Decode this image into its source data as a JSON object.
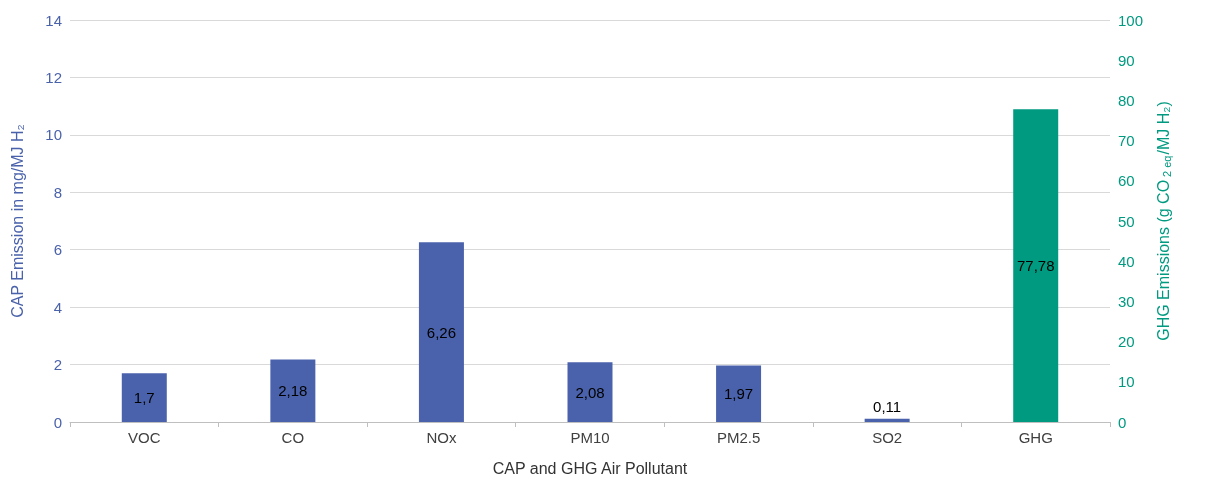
{
  "chart_data": {
    "type": "bar",
    "xlabel": "CAP and GHG Air Pollutant",
    "ylabel": "CAP Emission in mg/MJ H₂",
    "y2label": "GHG Emissions (g CO$_{2 eq}$/MJ H₂)",
    "categories": [
      "VOC",
      "CO",
      "NOx",
      "PM10",
      "PM2.5",
      "SO2",
      "GHG"
    ],
    "series": [
      {
        "color": "#4a62ab",
        "values": [
          1.7,
          2.18,
          6.26,
          2.08,
          1.97,
          0.11,
          null
        ],
        "value_labels": [
          "1,7",
          "2,18",
          "6,26",
          "2,08",
          "1,97",
          "0,11",
          null
        ]
      },
      {
        "color": "#009a80",
        "axis": "y2",
        "values": [
          null,
          null,
          null,
          null,
          null,
          null,
          77.78
        ],
        "value_labels": [
          null,
          null,
          null,
          null,
          null,
          null,
          "77,78"
        ]
      }
    ],
    "ylim": [
      0,
      14
    ],
    "yticks": [
      0,
      2,
      4,
      6,
      8,
      10,
      12,
      14
    ],
    "y2lim": [
      0,
      100
    ],
    "y2ticks": [
      0,
      10,
      20,
      30,
      40,
      50,
      60,
      70,
      80,
      90,
      100
    ],
    "grid": "y"
  }
}
